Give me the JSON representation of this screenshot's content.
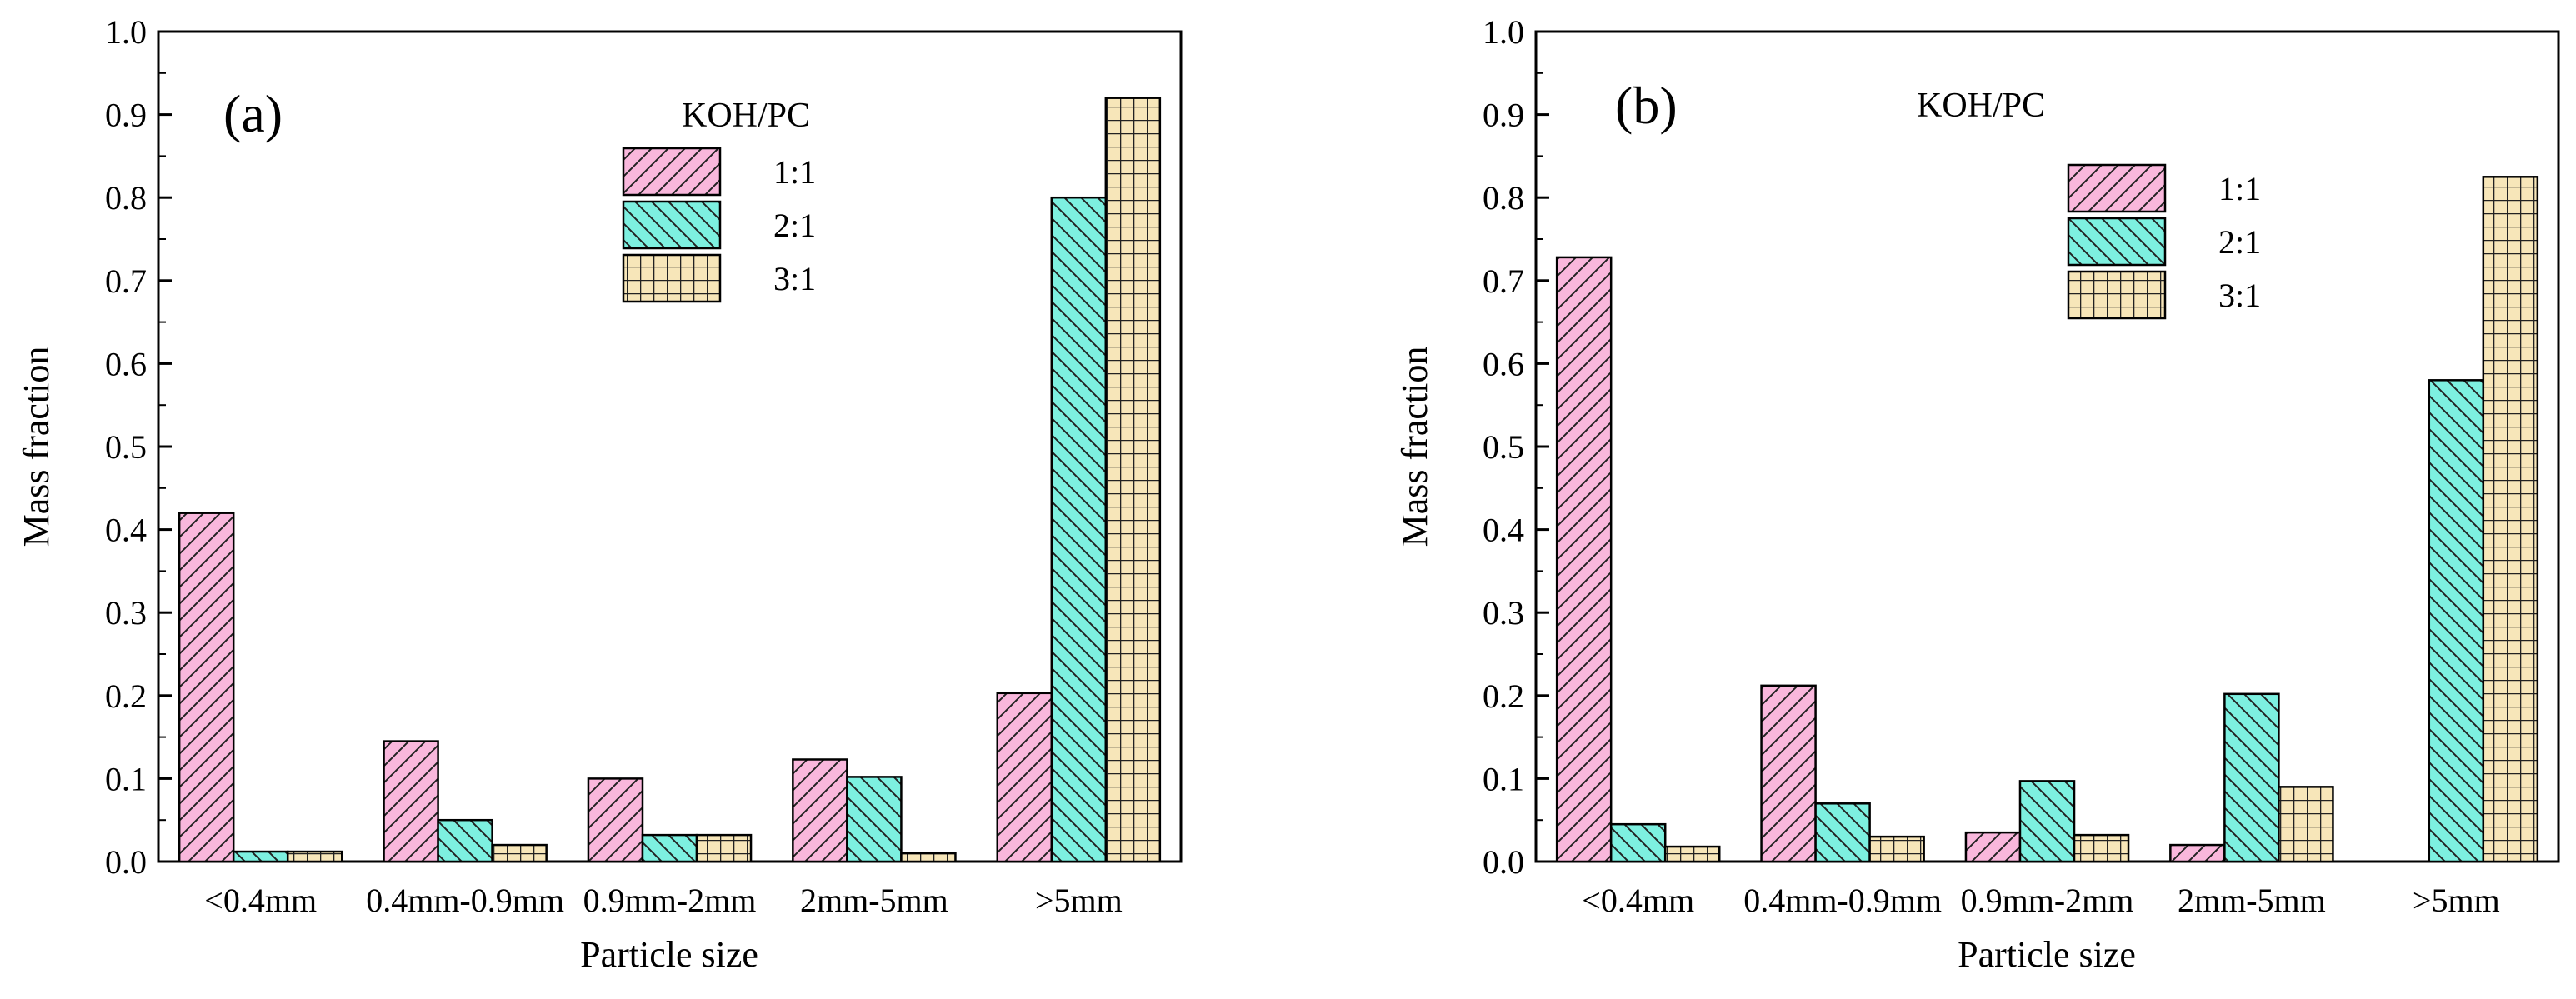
{
  "chart_data": [
    {
      "type": "bar",
      "panel_label": "(a)",
      "categories": [
        "<0.4mm",
        "0.4mm-0.9mm",
        "0.9mm-2mm",
        "2mm-5mm",
        ">5mm"
      ],
      "series": [
        {
          "name": "1:1",
          "values": [
            0.42,
            0.145,
            0.1,
            0.123,
            0.203
          ],
          "color": "#f9b7dc",
          "pattern": "hatch-right"
        },
        {
          "name": "2:1",
          "values": [
            0.012,
            0.05,
            0.032,
            0.102,
            0.8
          ],
          "color": "#7df0e0",
          "pattern": "hatch-left"
        },
        {
          "name": "3:1",
          "values": [
            0.012,
            0.02,
            0.032,
            0.01,
            0.92
          ],
          "color": "#f7e6b9",
          "pattern": "grid"
        }
      ],
      "xlabel": "Particle size",
      "ylabel": "Mass fraction",
      "ylim": [
        0.0,
        1.0
      ],
      "yticks": [
        "0.0",
        "0.1",
        "0.2",
        "0.3",
        "0.4",
        "0.5",
        "0.6",
        "0.7",
        "0.8",
        "0.9",
        "1.0"
      ],
      "legend_title": "KOH/PC",
      "legend_position": "top-center"
    },
    {
      "type": "bar",
      "panel_label": "(b)",
      "categories": [
        "<0.4mm",
        "0.4mm-0.9mm",
        "0.9mm-2mm",
        "2mm-5mm",
        ">5mm"
      ],
      "series": [
        {
          "name": "1:1",
          "values": [
            0.728,
            0.212,
            0.035,
            0.02,
            0.0
          ],
          "color": "#f9b7dc",
          "pattern": "hatch-right"
        },
        {
          "name": "2:1",
          "values": [
            0.045,
            0.07,
            0.097,
            0.202,
            0.58
          ],
          "color": "#7df0e0",
          "pattern": "hatch-left"
        },
        {
          "name": "3:1",
          "values": [
            0.018,
            0.03,
            0.032,
            0.09,
            0.825
          ],
          "color": "#f7e6b9",
          "pattern": "grid"
        }
      ],
      "xlabel": "Particle size",
      "ylabel": "Mass fraction",
      "ylim": [
        0.0,
        1.0
      ],
      "yticks": [
        "0.0",
        "0.1",
        "0.2",
        "0.3",
        "0.4",
        "0.5",
        "0.6",
        "0.7",
        "0.8",
        "0.9",
        "1.0"
      ],
      "legend_title": "KOH/PC",
      "legend_position": "top-center"
    }
  ]
}
